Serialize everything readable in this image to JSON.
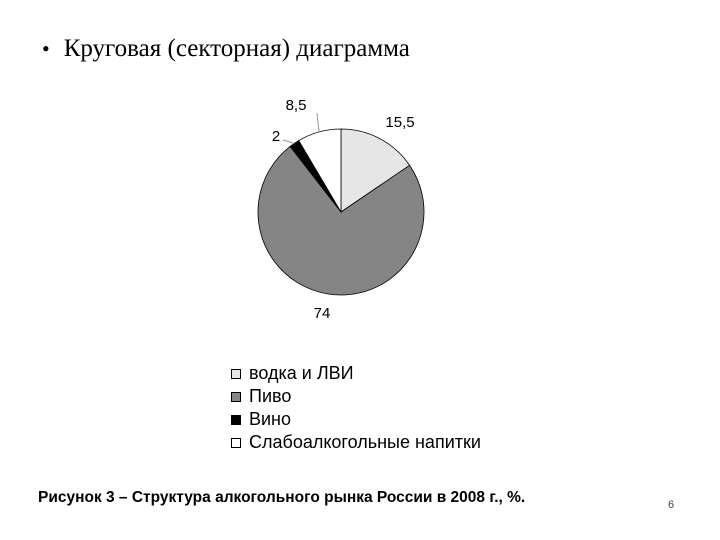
{
  "slide": {
    "bullet_text": "Круговая (секторная) диаграмма",
    "caption": "Рисунок 3 – Структура алкогольного рынка России в 2008 г., %.",
    "page_number": "6"
  },
  "chart_data": {
    "type": "pie",
    "categories": [
      "водка и ЛВИ",
      "Пиво",
      "Вино",
      "Слабоалкогольные напитки"
    ],
    "values": [
      15.5,
      74,
      2,
      8.5
    ],
    "data_labels": [
      "15,5",
      "74",
      "2",
      "8,5"
    ],
    "colors": [
      "#e6e6e6",
      "#858585",
      "#000000",
      "#ffffff"
    ],
    "legend_placement": "bottom",
    "start_angle": "12 o'clock, clockwise"
  }
}
